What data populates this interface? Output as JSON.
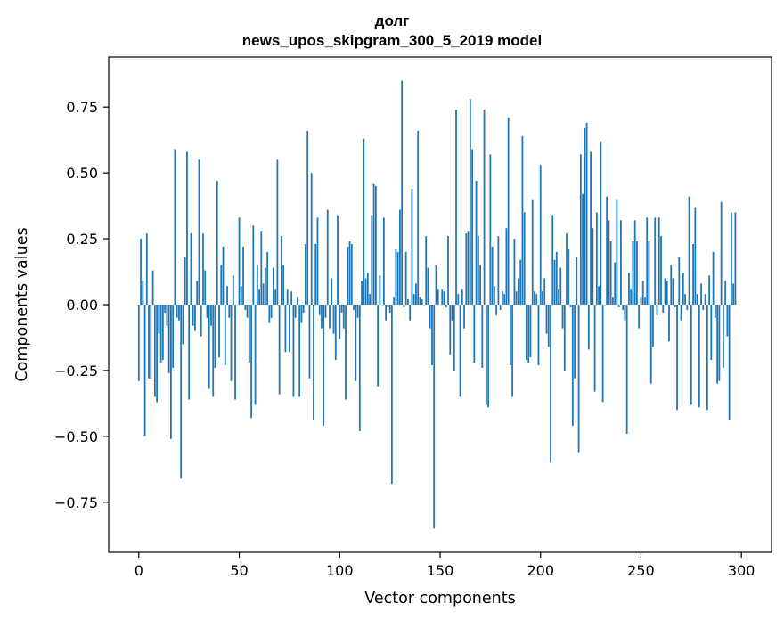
{
  "chart_data": {
    "type": "bar",
    "title": "долг",
    "subtitle": "news_upos_skipgram_300_5_2019 model",
    "xlabel": "Vector components",
    "ylabel": "Components values",
    "xlim": [
      -15,
      315
    ],
    "ylim": [
      -0.94,
      0.94
    ],
    "x_ticks": [
      0,
      50,
      100,
      150,
      200,
      250,
      300
    ],
    "y_ticks": [
      -0.75,
      -0.5,
      -0.25,
      0.0,
      0.25,
      0.5,
      0.75
    ],
    "y_tick_labels": [
      "−0.75",
      "−0.50",
      "−0.25",
      "0.00",
      "0.25",
      "0.50",
      "0.75"
    ],
    "bar_color": "#1f77b4",
    "grid": false,
    "values": [
      -0.29,
      0.25,
      0.09,
      -0.5,
      0.27,
      -0.28,
      -0.28,
      0.13,
      -0.35,
      -0.37,
      -0.11,
      -0.22,
      -0.21,
      -0.03,
      -0.08,
      -0.26,
      -0.51,
      -0.24,
      0.59,
      -0.05,
      -0.06,
      -0.66,
      -0.15,
      0.18,
      0.58,
      -0.36,
      0.27,
      -0.08,
      -0.1,
      0.09,
      0.55,
      -0.12,
      0.27,
      0.13,
      -0.05,
      -0.32,
      -0.08,
      -0.35,
      -0.24,
      0.47,
      -0.2,
      0.15,
      0.22,
      -0.23,
      0.07,
      -0.05,
      -0.29,
      0.11,
      -0.36,
      0.0,
      0.33,
      0.07,
      0.22,
      -0.02,
      -0.05,
      -0.22,
      -0.43,
      0.3,
      -0.38,
      0.15,
      0.06,
      0.28,
      0.08,
      0.14,
      0.2,
      -0.07,
      -0.05,
      0.14,
      0.06,
      0.55,
      -0.34,
      0.26,
      0.15,
      -0.18,
      0.06,
      -0.18,
      0.05,
      -0.35,
      -0.05,
      0.03,
      -0.35,
      -0.07,
      -0.03,
      0.23,
      0.66,
      -0.28,
      0.5,
      -0.44,
      0.23,
      0.33,
      -0.04,
      -0.09,
      -0.46,
      -0.05,
      0.36,
      -0.09,
      0.1,
      -0.11,
      -0.21,
      0.34,
      -0.13,
      -0.03,
      -0.09,
      -0.36,
      0.22,
      0.24,
      0.23,
      -0.02,
      -0.29,
      -0.05,
      -0.48,
      0.09,
      0.63,
      0.1,
      0.12,
      0.04,
      0.34,
      0.46,
      0.45,
      -0.31,
      0.11,
      0.0,
      0.33,
      -0.06,
      -0.01,
      -0.03,
      -0.68,
      0.03,
      0.21,
      0.2,
      0.36,
      0.85,
      -0.01,
      0.2,
      0.02,
      -0.06,
      0.44,
      0.04,
      0.08,
      0.66,
      0.03,
      0.02,
      0.0,
      0.26,
      0.14,
      -0.09,
      -0.23,
      -0.85,
      0.15,
      0.06,
      0.0,
      0.06,
      0.05,
      -0.01,
      0.26,
      -0.19,
      -0.06,
      -0.25,
      0.74,
      0.04,
      -0.35,
      0.06,
      -0.09,
      0.27,
      0.28,
      0.78,
      0.59,
      -0.22,
      0.47,
      0.26,
      0.15,
      -0.24,
      0.74,
      -0.38,
      -0.39,
      0.57,
      0.22,
      0.07,
      -0.04,
      0.26,
      -0.02,
      0.05,
      0.04,
      0.29,
      0.71,
      -0.23,
      -0.35,
      0.25,
      0.05,
      0.1,
      0.17,
      0.64,
      0.35,
      -0.21,
      -0.22,
      -0.2,
      0.4,
      0.05,
      0.04,
      -0.23,
      0.53,
      0.05,
      0.1,
      -0.11,
      -0.16,
      -0.6,
      0.34,
      0.17,
      0.2,
      0.06,
      0.14,
      -0.09,
      -0.25,
      0.27,
      0.21,
      -0.01,
      -0.46,
      -0.28,
      0.18,
      -0.56,
      0.57,
      0.42,
      0.67,
      0.69,
      -0.17,
      0.58,
      0.29,
      -0.33,
      0.35,
      0.07,
      0.62,
      -0.37,
      0.0,
      0.41,
      0.32,
      0.24,
      0.03,
      0.16,
      0.4,
      -0.01,
      0.32,
      -0.02,
      -0.06,
      -0.49,
      0.12,
      0.06,
      0.24,
      0.32,
      0.24,
      -0.09,
      0.03,
      0.09,
      0.03,
      0.33,
      0.24,
      -0.3,
      -0.16,
      0.33,
      -0.04,
      0.33,
      0.26,
      -0.03,
      0.1,
      0.09,
      -0.14,
      0.15,
      0.1,
      -0.01,
      -0.4,
      0.18,
      -0.06,
      0.12,
      0.04,
      -0.02,
      0.41,
      -0.38,
      0.23,
      0.37,
      0.04,
      -0.39,
      0.08,
      -0.02,
      0.04,
      -0.4,
      0.11,
      -0.21,
      0.2,
      -0.05,
      -0.3,
      -0.29,
      0.39,
      -0.24,
      0.09,
      -0.12,
      -0.44,
      0.35,
      0.08,
      0.35
    ]
  }
}
